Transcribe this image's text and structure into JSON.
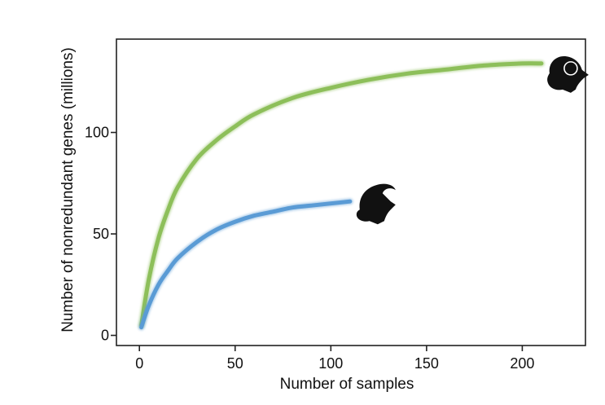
{
  "chart_data": {
    "type": "line",
    "xlabel": "Number of samples",
    "ylabel": "Number of nonredundant genes (millions)",
    "xlim": [
      -12,
      233
    ],
    "ylim": [
      -5,
      146
    ],
    "xticks": [
      0,
      50,
      100,
      150,
      200
    ],
    "yticks": [
      0,
      50,
      100
    ],
    "grid": false,
    "legend": "none",
    "series": [
      {
        "icon": "ram-head-icon",
        "color": "#8dbf5a",
        "x": [
          1,
          5,
          10,
          15,
          20,
          30,
          40,
          50,
          60,
          80,
          100,
          120,
          140,
          160,
          180,
          200,
          210
        ],
        "y": [
          5,
          28,
          48,
          62,
          73,
          87,
          96,
          103,
          109,
          117,
          122,
          126,
          129,
          131,
          133,
          134,
          134
        ]
      },
      {
        "icon": "goat-head-icon",
        "color": "#5a9bd5",
        "x": [
          1,
          5,
          10,
          15,
          20,
          30,
          40,
          50,
          60,
          70,
          80,
          90,
          100,
          110
        ],
        "y": [
          4,
          15,
          25,
          32,
          38,
          46,
          52,
          56,
          59,
          61,
          63,
          64,
          65,
          66
        ]
      }
    ]
  }
}
